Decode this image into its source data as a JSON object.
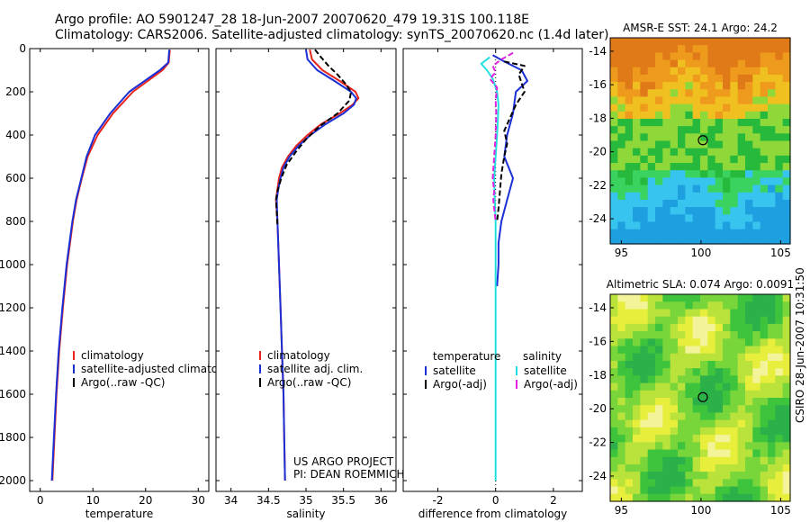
{
  "header": {
    "line1": "Argo profile: AO 5901247_28 18-Jun-2007 20070620_479 19.31S 100.118E",
    "line2": "Climatology: CARS2006. Satellite-adjusted climatology: synTS_20070620.nc (1.4d later)"
  },
  "credit": {
    "project": "US ARGO PROJECT",
    "pi": "PI: DEAN ROEMMICH",
    "stamp": "CSIRO 28-Jun-2007 10:31:50"
  },
  "colors": {
    "climatology": "#e8241c",
    "satellite": "#1a2fd6",
    "argo": "#000000",
    "salinity_satellite": "#22e0e0",
    "salinity_argo": "#e020e0"
  },
  "chart_data": [
    {
      "type": "line",
      "id": "temperature",
      "xlabel": "temperature",
      "ylabel": "",
      "xlim": [
        -2,
        32
      ],
      "ylim": [
        2050,
        0
      ],
      "xticks": [
        "0",
        "10",
        "20",
        "30"
      ],
      "yticks": [
        "0",
        "200",
        "400",
        "600",
        "800",
        "1000",
        "1200",
        "1400",
        "1600",
        "1800",
        "2000"
      ],
      "legend": [
        "climatology",
        "satellite-adjusted climatology",
        "Argo(..raw -QC)"
      ],
      "series": [
        {
          "name": "climatology",
          "color": "#e8241c",
          "y": [
            5,
            65,
            100,
            200,
            300,
            400,
            500,
            600,
            700,
            800,
            1000,
            1200,
            1400,
            1600,
            1800,
            2000
          ],
          "x": [
            24.6,
            24.4,
            23.2,
            17.6,
            13.8,
            10.9,
            9.0,
            7.9,
            6.9,
            6.2,
            5.1,
            4.3,
            3.6,
            3.1,
            2.7,
            2.3
          ]
        },
        {
          "name": "satellite-adjusted climatology",
          "color": "#1a2fd6",
          "y": [
            5,
            65,
            100,
            200,
            300,
            400,
            500,
            600,
            700,
            800,
            1000,
            1200,
            1400,
            1600,
            1800,
            2000
          ],
          "x": [
            24.5,
            24.3,
            22.7,
            16.9,
            13.3,
            10.4,
            8.8,
            7.8,
            6.8,
            6.1,
            5.0,
            4.2,
            3.5,
            3.0,
            2.6,
            2.2
          ]
        }
      ]
    },
    {
      "type": "line",
      "id": "salinity",
      "xlabel": "salinity",
      "xlim": [
        33.8,
        36.2
      ],
      "ylim": [
        2050,
        0
      ],
      "xticks": [
        "34",
        "34.5",
        "35",
        "35.5",
        "36"
      ],
      "legend": [
        "climatology",
        "satellite adj. clim.",
        "Argo(..raw -QC)"
      ],
      "series": [
        {
          "name": "climatology",
          "color": "#e8241c",
          "y": [
            5,
            50,
            100,
            150,
            200,
            230,
            260,
            300,
            350,
            400,
            450,
            500,
            550,
            600,
            650,
            700,
            800,
            1000,
            1200,
            1400,
            1600,
            1800,
            2000
          ],
          "x": [
            35.05,
            35.08,
            35.22,
            35.45,
            35.66,
            35.7,
            35.62,
            35.45,
            35.2,
            35.02,
            34.87,
            34.76,
            34.68,
            34.64,
            34.62,
            34.6,
            34.62,
            34.64,
            34.66,
            34.68,
            34.7,
            34.71,
            34.72
          ]
        },
        {
          "name": "satellite adj. clim.",
          "color": "#1a2fd6",
          "y": [
            5,
            50,
            100,
            150,
            200,
            230,
            260,
            300,
            350,
            400,
            450,
            500,
            550,
            600,
            650,
            700,
            800,
            1000,
            1200,
            1400,
            1600,
            1800,
            2000
          ],
          "x": [
            35.0,
            35.02,
            35.15,
            35.38,
            35.6,
            35.67,
            35.64,
            35.5,
            35.26,
            35.06,
            34.9,
            34.78,
            34.7,
            34.66,
            34.63,
            34.61,
            34.62,
            34.64,
            34.66,
            34.68,
            34.7,
            34.71,
            34.72
          ]
        },
        {
          "name": "Argo(..raw -QC)",
          "color": "#000000",
          "dash": true,
          "y": [
            5,
            40,
            80,
            120,
            160,
            200,
            240,
            300,
            360,
            420,
            480,
            540,
            600,
            660,
            700,
            760,
            820
          ],
          "x": [
            35.12,
            35.2,
            35.3,
            35.42,
            35.52,
            35.6,
            35.58,
            35.42,
            35.18,
            35.0,
            34.86,
            34.74,
            34.67,
            34.62,
            34.6,
            34.61,
            34.62
          ]
        }
      ]
    },
    {
      "type": "line",
      "id": "difference",
      "xlabel": "difference from climatology",
      "xlim": [
        -3.2,
        3.0
      ],
      "ylim": [
        2050,
        0
      ],
      "xticks": [
        "-2",
        "0",
        "2"
      ],
      "legend_temperature": {
        "title": "temperature",
        "items": [
          "satellite",
          "Argo(-adj)"
        ]
      },
      "legend_salinity": {
        "title": "salinity",
        "items": [
          "satellite",
          "Argo(-adj)"
        ]
      },
      "series": [
        {
          "name": "temperature satellite",
          "color": "#1a2fd6",
          "y": [
            30,
            60,
            100,
            150,
            200,
            300,
            400,
            500,
            600,
            700,
            800,
            900,
            1000,
            1100
          ],
          "x": [
            -0.1,
            0.3,
            0.9,
            1.1,
            0.7,
            0.6,
            0.4,
            0.3,
            0.6,
            0.4,
            0.2,
            0.1,
            0.1,
            0.05
          ]
        },
        {
          "name": "temperature Argo(-adj)",
          "color": "#000000",
          "dash": true,
          "y": [
            60,
            80,
            120,
            160,
            200,
            260,
            320,
            380,
            440,
            500,
            580,
            660,
            740,
            800
          ],
          "x": [
            0.3,
            1.0,
            0.8,
            0.9,
            1.0,
            0.7,
            0.5,
            0.3,
            0.4,
            0.3,
            0.2,
            0.15,
            0.1,
            0.05
          ]
        },
        {
          "name": "salinity satellite",
          "color": "#22e0e0",
          "y": [
            40,
            70,
            100,
            140,
            200,
            260,
            320,
            400,
            500,
            600,
            700,
            800,
            1000,
            1400,
            1800,
            2000
          ],
          "x": [
            -0.2,
            -0.5,
            -0.3,
            -0.1,
            0.05,
            0.1,
            0.08,
            0.05,
            0.0,
            -0.05,
            -0.03,
            0.0,
            0.0,
            0.0,
            0.0,
            0.0
          ]
        },
        {
          "name": "salinity Argo(-adj)",
          "color": "#e020e0",
          "dash": true,
          "y": [
            20,
            50,
            80,
            110,
            140,
            180,
            240,
            300,
            400,
            500,
            600,
            660,
            700,
            740,
            800
          ],
          "x": [
            0.6,
            0.2,
            -0.1,
            0.0,
            -0.2,
            0.05,
            0.0,
            0.02,
            0.0,
            -0.05,
            -0.1,
            -0.05,
            -0.08,
            -0.05,
            0.0
          ]
        }
      ]
    }
  ],
  "maps": [
    {
      "id": "sst",
      "title": "AMSR-E SST: 24.1  Argo: 24.2",
      "xticks": [
        "95",
        "100",
        "105"
      ],
      "yticks": [
        "-14",
        "-16",
        "-18",
        "-20",
        "-22",
        "-24"
      ],
      "marker": {
        "lon": 100.118,
        "lat": -19.31
      }
    },
    {
      "id": "sla",
      "title": "Altimetric SLA: 0.074  Argo: 0.0091",
      "xticks": [
        "95",
        "100",
        "105"
      ],
      "yticks": [
        "-14",
        "-16",
        "-18",
        "-20",
        "-22",
        "-24"
      ],
      "marker": {
        "lon": 100.118,
        "lat": -19.31
      }
    }
  ]
}
